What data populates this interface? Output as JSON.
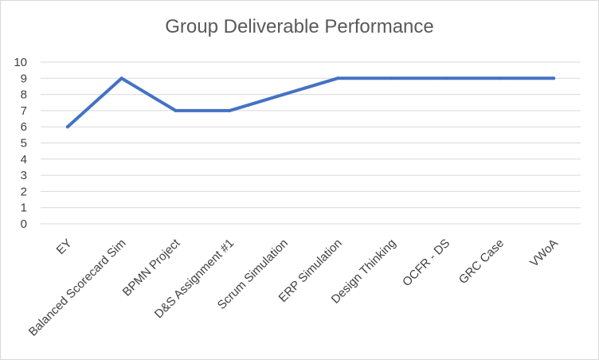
{
  "chart_data": {
    "type": "line",
    "title": "Group Deliverable Performance",
    "xlabel": "",
    "ylabel": "",
    "categories": [
      "EY",
      "Balanced Scorecard Sim",
      "BPMN Project",
      "D&S Assignment #1",
      "Scrum Simulation",
      "ERP Simulation",
      "Design Thinking",
      "OCFR - DS",
      "GRC Case",
      "VWoA"
    ],
    "series": [
      {
        "values": [
          6,
          9,
          7,
          7,
          8,
          9,
          9,
          9,
          9,
          9
        ]
      }
    ],
    "ylim": [
      0,
      10
    ],
    "yticks": [
      0,
      1,
      2,
      3,
      4,
      5,
      6,
      7,
      8,
      9,
      10
    ],
    "grid": true,
    "legend": "none",
    "colors": {
      "line": "#4472c4",
      "grid": "#d9d9d9",
      "text": "#404040",
      "title": "#595959"
    }
  }
}
